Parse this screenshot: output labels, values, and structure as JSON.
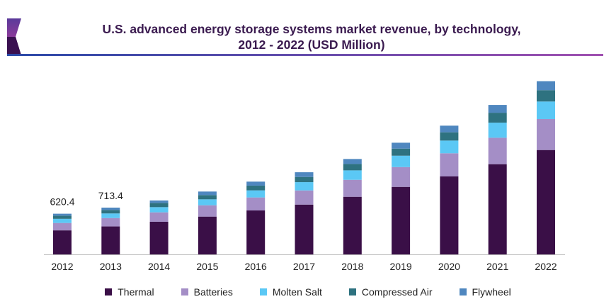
{
  "title_line1": "U.S. advanced energy storage systems market revenue, by technology,",
  "title_line2": "2012 - 2022 (USD Million)",
  "chart_data": {
    "type": "bar",
    "stacked": true,
    "title": "U.S. advanced energy storage systems market revenue, by technology, 2012 - 2022 (USD Million)",
    "categories": [
      "2012",
      "2013",
      "2014",
      "2015",
      "2016",
      "2017",
      "2018",
      "2019",
      "2020",
      "2021",
      "2022"
    ],
    "series": [
      {
        "name": "Thermal",
        "color": "#3a0f47",
        "values": [
          366,
          426,
          497,
          576,
          670,
          759,
          878,
          1029,
          1188,
          1375,
          1591
        ]
      },
      {
        "name": "Batteries",
        "color": "#a48ec6",
        "values": [
          113,
          128,
          144,
          173,
          198,
          216,
          259,
          302,
          353,
          403,
          472
        ]
      },
      {
        "name": "Molten Salt",
        "color": "#5bc8f5",
        "values": [
          63,
          70,
          79,
          90,
          108,
          126,
          144,
          173,
          194,
          230,
          267
        ]
      },
      {
        "name": "Compressed Air",
        "color": "#2e7280",
        "values": [
          48,
          53,
          65,
          65,
          72,
          79,
          97,
          108,
          126,
          151,
          173
        ]
      },
      {
        "name": "Flywheel",
        "color": "#4f87bf",
        "values": [
          30,
          36,
          37,
          54,
          61,
          72,
          76,
          90,
          101,
          119,
          137
        ]
      }
    ],
    "data_labels": [
      {
        "category": "2012",
        "label": "620.4"
      },
      {
        "category": "2013",
        "label": "713.4"
      }
    ],
    "xlabel": "",
    "ylabel": "",
    "y_axis_shown": false,
    "grid": false,
    "legend_placement": "bottom"
  }
}
